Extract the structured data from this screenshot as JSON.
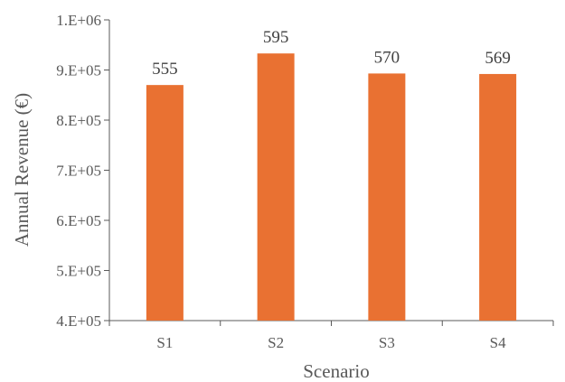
{
  "chart_data": {
    "type": "bar",
    "categories": [
      "S1",
      "S2",
      "S3",
      "S4"
    ],
    "values": [
      870000,
      933000,
      893000,
      892000
    ],
    "data_labels": [
      "555",
      "595",
      "570",
      "569"
    ],
    "title": "",
    "xlabel": "Scenario",
    "ylabel": "Annual Revenue (€)",
    "ylim": [
      400000,
      1000000
    ],
    "y_ticks": [
      400000,
      500000,
      600000,
      700000,
      800000,
      900000,
      1000000
    ],
    "y_tick_labels": [
      "4.E+05",
      "5.E+05",
      "6.E+05",
      "7.E+05",
      "8.E+05",
      "9.E+05",
      "1.E+06"
    ],
    "grid": false,
    "legend": "none",
    "bar_color": "#E97132"
  }
}
